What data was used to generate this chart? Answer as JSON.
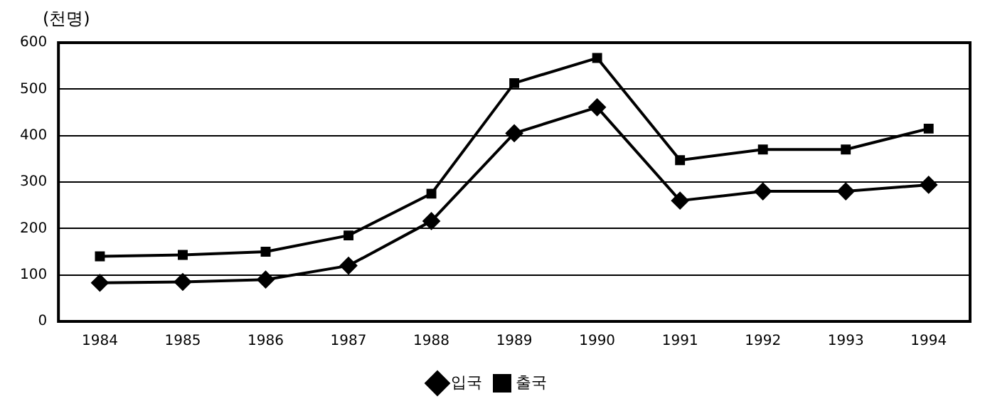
{
  "chart_data": {
    "type": "line",
    "ylabel": "(천명)",
    "categories": [
      "1984",
      "1985",
      "1986",
      "1987",
      "1988",
      "1989",
      "1990",
      "1991",
      "1992",
      "1993",
      "1994"
    ],
    "series": [
      {
        "name": "입국",
        "color": "#000000",
        "marker": "diamond",
        "values": [
          83,
          85,
          90,
          120,
          216,
          405,
          461,
          260,
          280,
          280,
          294
        ]
      },
      {
        "name": "출국",
        "color": "#000000",
        "marker": "square",
        "values": [
          140,
          143,
          150,
          185,
          275,
          513,
          567,
          347,
          370,
          370,
          415
        ]
      }
    ],
    "ylim": [
      0,
      600
    ],
    "yticks": [
      0,
      100,
      200,
      300,
      400,
      500,
      600
    ],
    "grid": "y",
    "legend": "bottom",
    "line_style": "solid"
  }
}
